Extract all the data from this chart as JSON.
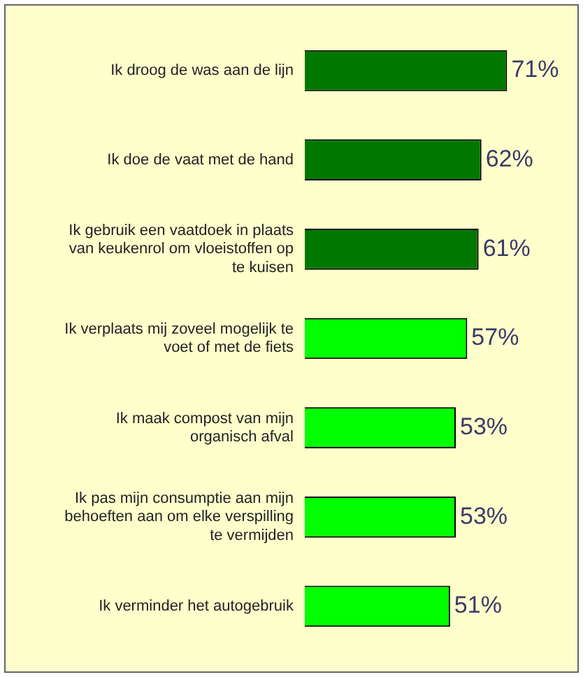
{
  "chart_data": {
    "type": "bar",
    "orientation": "horizontal",
    "categories": [
      "Ik droog de was aan de lijn",
      "Ik doe de vaat met de hand",
      "Ik gebruik een vaatdoek in plaats van keukenrol om vloeistoffen op te kuisen",
      "Ik verplaats mij zoveel mogelijk te voet of met de fiets",
      "Ik maak compost van mijn organisch afval",
      "Ik pas mijn consumptie aan mijn behoeften aan om elke verspilling te vermijden",
      "Ik verminder het autogebruik"
    ],
    "values": [
      71,
      62,
      61,
      57,
      53,
      53,
      51
    ],
    "colors": [
      "#007800",
      "#007800",
      "#007800",
      "#00ff00",
      "#00ff00",
      "#00ff00",
      "#00ff00"
    ],
    "value_labels": [
      "71%",
      "62%",
      "61%",
      "57%",
      "53%",
      "53%",
      "51%"
    ],
    "grid": false,
    "legend": false,
    "tick_labels": "y"
  }
}
